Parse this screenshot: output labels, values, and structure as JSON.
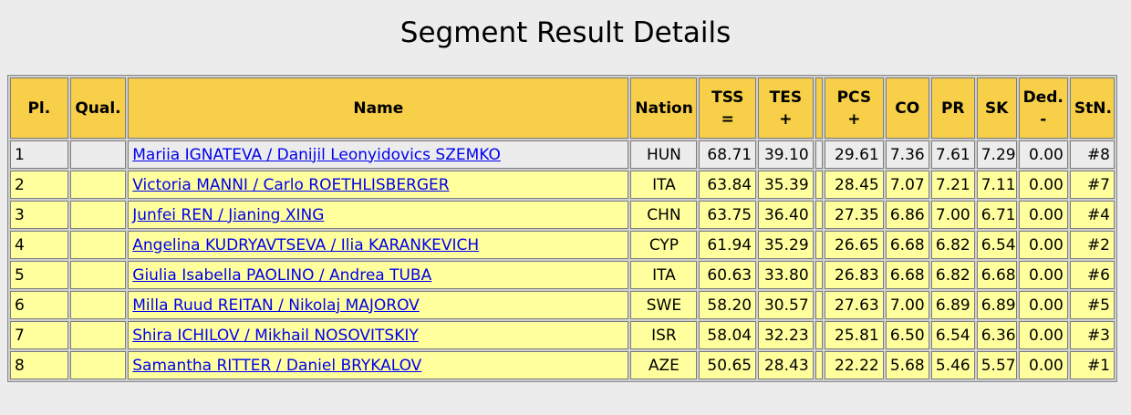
{
  "page": {
    "title": "Segment Result Details"
  },
  "table": {
    "headers": {
      "pl": "Pl.",
      "qual": "Qual.",
      "name": "Name",
      "nation": "Nation",
      "tss": "TSS",
      "tss_sym": "=",
      "tes": "TES",
      "tes_sym": "+",
      "pcs": "PCS",
      "pcs_sym": "+",
      "co": "CO",
      "pr": "PR",
      "sk": "SK",
      "ded": "Ded.",
      "ded_sym": "-",
      "stn": "StN."
    },
    "rows": [
      {
        "pl": "1",
        "qual": "",
        "name": "Mariia IGNATEVA / Danijil Leonyidovics SZEMKO",
        "nation": "HUN",
        "tss": "68.71",
        "tes": "39.10",
        "pcs": "29.61",
        "co": "7.36",
        "pr": "7.61",
        "sk": "7.29",
        "ded": "0.00",
        "stn": "#8"
      },
      {
        "pl": "2",
        "qual": "",
        "name": "Victoria MANNI / Carlo ROETHLISBERGER",
        "nation": "ITA",
        "tss": "63.84",
        "tes": "35.39",
        "pcs": "28.45",
        "co": "7.07",
        "pr": "7.21",
        "sk": "7.11",
        "ded": "0.00",
        "stn": "#7"
      },
      {
        "pl": "3",
        "qual": "",
        "name": "Junfei REN / Jianing XING",
        "nation": "CHN",
        "tss": "63.75",
        "tes": "36.40",
        "pcs": "27.35",
        "co": "6.86",
        "pr": "7.00",
        "sk": "6.71",
        "ded": "0.00",
        "stn": "#4"
      },
      {
        "pl": "4",
        "qual": "",
        "name": "Angelina KUDRYAVTSEVA / Ilia KARANKEVICH",
        "nation": "CYP",
        "tss": "61.94",
        "tes": "35.29",
        "pcs": "26.65",
        "co": "6.68",
        "pr": "6.82",
        "sk": "6.54",
        "ded": "0.00",
        "stn": "#2"
      },
      {
        "pl": "5",
        "qual": "",
        "name": "Giulia Isabella PAOLINO / Andrea TUBA",
        "nation": "ITA",
        "tss": "60.63",
        "tes": "33.80",
        "pcs": "26.83",
        "co": "6.68",
        "pr": "6.82",
        "sk": "6.68",
        "ded": "0.00",
        "stn": "#6"
      },
      {
        "pl": "6",
        "qual": "",
        "name": "Milla Ruud REITAN / Nikolaj MAJOROV",
        "nation": "SWE",
        "tss": "58.20",
        "tes": "30.57",
        "pcs": "27.63",
        "co": "7.00",
        "pr": "6.89",
        "sk": "6.89",
        "ded": "0.00",
        "stn": "#5"
      },
      {
        "pl": "7",
        "qual": "",
        "name": "Shira ICHILOV / Mikhail NOSOVITSKIY",
        "nation": "ISR",
        "tss": "58.04",
        "tes": "32.23",
        "pcs": "25.81",
        "co": "6.50",
        "pr": "6.54",
        "sk": "6.36",
        "ded": "0.00",
        "stn": "#3"
      },
      {
        "pl": "8",
        "qual": "",
        "name": "Samantha RITTER / Daniel BRYKALOV",
        "nation": "AZE",
        "tss": "50.65",
        "tes": "28.43",
        "pcs": "22.22",
        "co": "5.68",
        "pr": "5.46",
        "sk": "5.57",
        "ded": "0.00",
        "stn": "#1"
      }
    ]
  },
  "colors": {
    "header_bg": "#f7cf48",
    "row_highlight": "#ffff9e",
    "row_first": "#ececec",
    "link": "#0000ee"
  }
}
